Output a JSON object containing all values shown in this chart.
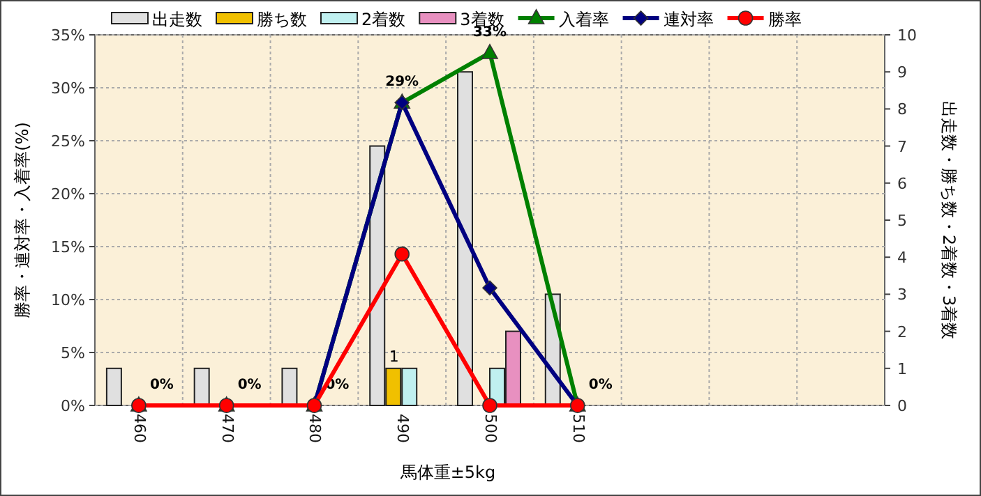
{
  "chart_data": {
    "type": "bar",
    "xlabel": "馬体重±5kg",
    "ylabel": "勝率・連対率・入着率(%)",
    "y2label": "出走数・勝ち数・2着数・3着数",
    "categories": [
      "460",
      "470",
      "480",
      "490",
      "500",
      "510",
      null,
      null,
      null
    ],
    "ylim": [
      0,
      35
    ],
    "yticks": [
      {
        "value": 0,
        "label": "0%"
      },
      {
        "value": 5,
        "label": "5%"
      },
      {
        "value": 10,
        "label": "10%"
      },
      {
        "value": 15,
        "label": "15%"
      },
      {
        "value": 20,
        "label": "20%"
      },
      {
        "value": 25,
        "label": "25%"
      },
      {
        "value": 30,
        "label": "30%"
      },
      {
        "value": 35,
        "label": "35%"
      }
    ],
    "y2lim": [
      0,
      10
    ],
    "y2ticks": [
      0,
      1,
      2,
      3,
      4,
      5,
      6,
      7,
      8,
      9,
      10
    ],
    "grid": true,
    "legend": "top",
    "series": [
      {
        "name": "出走数",
        "axis": "y2",
        "color": "#e0e0e0",
        "values": [
          1,
          1,
          1,
          7,
          9,
          3,
          null,
          null,
          null
        ]
      },
      {
        "name": "勝ち数",
        "axis": "y2",
        "color": "#f0c000",
        "values": [
          0,
          0,
          0,
          1,
          0,
          0,
          null,
          null,
          null
        ],
        "value_labels": [
          null,
          null,
          null,
          "1",
          null,
          null,
          null,
          null,
          null
        ]
      },
      {
        "name": "2着数",
        "axis": "y2",
        "color": "#c0f0f0",
        "values": [
          0,
          0,
          0,
          1,
          1,
          0,
          null,
          null,
          null
        ]
      },
      {
        "name": "3着数",
        "axis": "y2",
        "color": "#e890c0",
        "values": [
          0,
          0,
          0,
          0,
          2,
          0,
          null,
          null,
          null
        ]
      },
      {
        "name": "入着率",
        "type": "line",
        "marker": "triangle",
        "color": "#008000",
        "values": [
          0,
          0,
          0,
          28.6,
          33.3,
          0,
          null,
          null,
          null
        ],
        "value_labels": [
          "0%",
          "0%",
          "0%",
          "29%",
          "33%",
          "0%",
          null,
          null,
          null
        ]
      },
      {
        "name": "連対率",
        "type": "line",
        "marker": "diamond",
        "color": "#000080",
        "values": [
          0,
          0,
          0,
          28.6,
          11.1,
          0,
          null,
          null,
          null
        ]
      },
      {
        "name": "勝率",
        "type": "line",
        "marker": "circle",
        "color": "#ff0000",
        "values": [
          0,
          0,
          0,
          14.3,
          0,
          0,
          null,
          null,
          null
        ]
      }
    ]
  }
}
